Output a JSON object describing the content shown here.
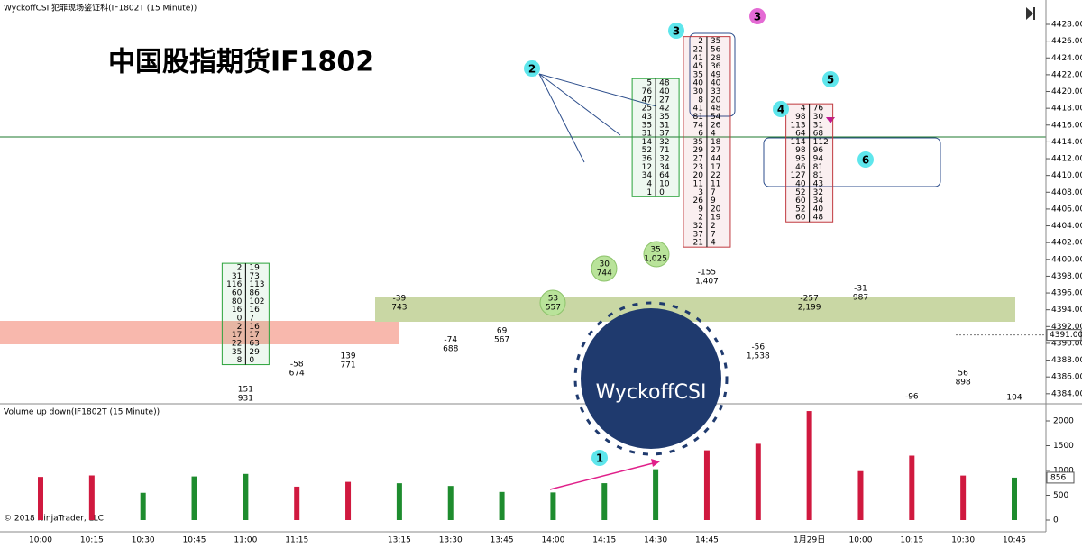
{
  "chart_data": {
    "type": "footprint",
    "header": "WyckoffCSI 犯罪现场鉴证科(IF1802T (15 Minute))",
    "title": "中国股指期货IF1802",
    "volume_title": "Volume up down(IF1802T (15 Minute))",
    "copyright": "© 2018 NinjaTrader, LLC",
    "watermark": "WyckoffCSI",
    "categories": [
      "10:00",
      "10:15",
      "10:30",
      "10:45",
      "11:00",
      "11:15",
      null,
      "13:15",
      "13:30",
      "13:45",
      "14:00",
      "14:15",
      "14:30",
      "14:45",
      null,
      "1月29日",
      "10:00",
      "10:15",
      "10:30",
      "10:45"
    ],
    "ylim": [
      4382.8,
      4430.9
    ],
    "yticks": [
      {
        "value": 4384,
        "label": "4384.00"
      },
      {
        "value": 4386,
        "label": "4386.00"
      },
      {
        "value": 4388,
        "label": "4388.00"
      },
      {
        "value": 4390,
        "label": "4390.00"
      },
      {
        "value": 4392,
        "label": "4392.00"
      },
      {
        "value": 4394,
        "label": "4394.00"
      },
      {
        "value": 4396,
        "label": "4396.00"
      },
      {
        "value": 4398,
        "label": "4398.00"
      },
      {
        "value": 4400,
        "label": "4400.00"
      },
      {
        "value": 4402,
        "label": "4402.00"
      },
      {
        "value": 4404,
        "label": "4404.00"
      },
      {
        "value": 4406,
        "label": "4406.00"
      },
      {
        "value": 4408,
        "label": "4408.00"
      },
      {
        "value": 4410,
        "label": "4410.00"
      },
      {
        "value": 4412,
        "label": "4412.00"
      },
      {
        "value": 4414,
        "label": "4414.00"
      },
      {
        "value": 4416,
        "label": "4416.00"
      },
      {
        "value": 4418,
        "label": "4418.00"
      },
      {
        "value": 4420,
        "label": "4420.00"
      },
      {
        "value": 4422,
        "label": "4422.00"
      },
      {
        "value": 4424,
        "label": "4424.00"
      },
      {
        "value": 4426,
        "label": "4426.00"
      },
      {
        "value": 4428,
        "label": "4428.00"
      }
    ],
    "last_price": {
      "value": 4391,
      "label": "4391.00"
    },
    "deltas": [
      null,
      null,
      null,
      null,
      151,
      -58,
      139,
      -39,
      -74,
      69,
      53,
      30,
      35,
      -155,
      -56,
      -257,
      -31,
      -96,
      56,
      104
    ],
    "volume": {
      "values": [
        870,
        900,
        550,
        880,
        931,
        674,
        771,
        743,
        688,
        567,
        557,
        744,
        1025,
        1407,
        1538,
        2199,
        987,
        1300,
        898,
        856
      ],
      "value_labels": [
        null,
        null,
        null,
        null,
        "931",
        "674",
        "771",
        "743",
        "688",
        "567",
        "557",
        "744",
        "1,025",
        "1,407",
        "1,538",
        "2,199",
        "987",
        null,
        "898",
        null
      ],
      "colors": [
        "#d0193f",
        "#d0193f",
        "#1e8c2e",
        "#1e8c2e",
        "#1e8c2e",
        "#d0193f",
        "#d0193f",
        "#1e8c2e",
        "#1e8c2e",
        "#1e8c2e",
        "#1e8c2e",
        "#1e8c2e",
        "#1e8c2e",
        "#d0193f",
        "#d0193f",
        "#d0193f",
        "#d0193f",
        "#d0193f",
        "#d0193f",
        "#1e8c2e"
      ],
      "ylim": [
        0,
        2200
      ],
      "yticks": [
        0,
        500,
        1000,
        1500,
        2000
      ]
    },
    "footprints": [
      null,
      null,
      null,
      null,
      {
        "top": 4399,
        "color": "#2aa33a",
        "rows": [
          [
            2,
            19
          ],
          [
            31,
            73
          ],
          [
            116,
            113
          ],
          [
            60,
            86
          ],
          [
            80,
            102
          ],
          [
            16,
            16
          ],
          [
            0,
            7
          ],
          [
            2,
            16
          ],
          [
            17,
            17
          ],
          [
            22,
            63
          ],
          [
            35,
            29
          ],
          [
            8,
            0
          ]
        ]
      },
      null,
      null,
      null,
      null,
      null,
      null,
      null,
      {
        "top": 4421,
        "color": "#2aa33a",
        "rows": [
          [
            5,
            48
          ],
          [
            76,
            40
          ],
          [
            47,
            27
          ],
          [
            25,
            42
          ],
          [
            43,
            35
          ],
          [
            35,
            31
          ],
          [
            31,
            37
          ],
          [
            14,
            32
          ],
          [
            52,
            71
          ],
          [
            36,
            32
          ],
          [
            12,
            34
          ],
          [
            34,
            64
          ],
          [
            4,
            10
          ],
          [
            1,
            0
          ]
        ]
      },
      {
        "top": 4426,
        "color": "#c0393f",
        "rows": [
          [
            2,
            35
          ],
          [
            22,
            56
          ],
          [
            41,
            28
          ],
          [
            45,
            36
          ],
          [
            35,
            49
          ],
          [
            40,
            40
          ],
          [
            30,
            33
          ],
          [
            8,
            20
          ],
          [
            41,
            48
          ],
          [
            81,
            54
          ],
          [
            74,
            26
          ],
          [
            6,
            4
          ],
          [
            35,
            18
          ],
          [
            29,
            27
          ],
          [
            27,
            44
          ],
          [
            23,
            17
          ],
          [
            20,
            22
          ],
          [
            11,
            11
          ],
          [
            3,
            7
          ],
          [
            26,
            9
          ],
          [
            9,
            20
          ],
          [
            2,
            19
          ],
          [
            32,
            2
          ],
          [
            37,
            7
          ],
          [
            21,
            4
          ]
        ]
      },
      null,
      {
        "top": 4418,
        "color": "#c0393f",
        "rows": [
          [
            4,
            76
          ],
          [
            98,
            30
          ],
          [
            113,
            31
          ],
          [
            64,
            68
          ],
          [
            114,
            112
          ],
          [
            98,
            96
          ],
          [
            95,
            94
          ],
          [
            46,
            81
          ],
          [
            127,
            81
          ],
          [
            40,
            43
          ],
          [
            52,
            32
          ],
          [
            60,
            34
          ],
          [
            52,
            40
          ],
          [
            60,
            48
          ]
        ]
      },
      null,
      null,
      null,
      null
    ],
    "annotations": [
      "1",
      "2",
      "3",
      "3",
      "4",
      "5",
      "6"
    ]
  }
}
